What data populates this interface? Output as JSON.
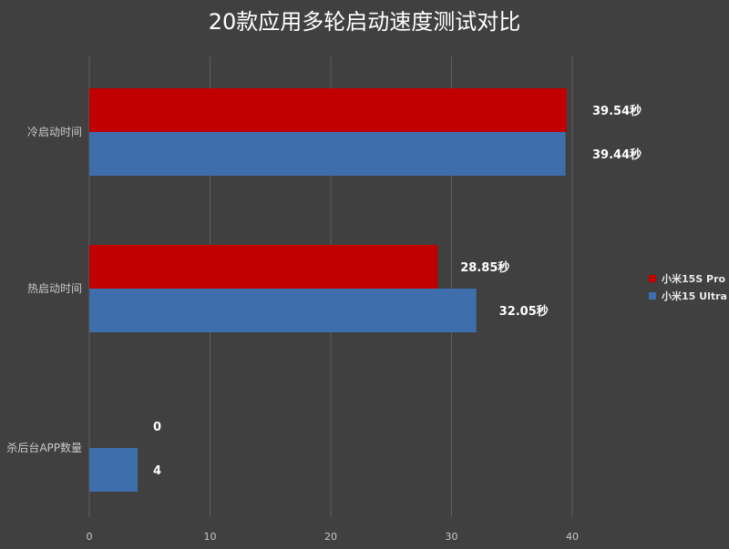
{
  "chart_data": {
    "type": "bar",
    "orientation": "horizontal",
    "title": "20款应用多轮启动速度测试对比",
    "categories": [
      "冷启动时间",
      "热启动时间",
      "杀后台APP数量"
    ],
    "series": [
      {
        "name": "小米15S Pro",
        "color": "#c00000",
        "values": [
          39.54,
          28.85,
          0
        ],
        "labels": [
          "39.54秒",
          "28.85秒",
          "0"
        ]
      },
      {
        "name": "小米15 Ultra",
        "color": "#3f6ead",
        "values": [
          39.44,
          32.05,
          4
        ],
        "labels": [
          "39.44秒",
          "32.05秒",
          "4"
        ]
      }
    ],
    "x_ticks": [
      "0",
      "10",
      "20",
      "30",
      "40"
    ],
    "xlim": [
      0,
      40
    ],
    "grid": true,
    "legend_position": "right"
  }
}
